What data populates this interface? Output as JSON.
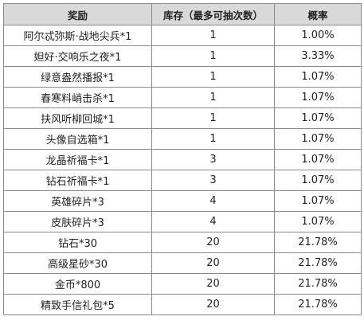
{
  "table": {
    "headers": [
      "奖励",
      "库存（最多可抽次数）",
      "概率"
    ],
    "rows": [
      {
        "reward": "阿尔忒弥斯·战地尖兵*1",
        "stock": "1",
        "prob": "1.00%"
      },
      {
        "reward": "妲好·交响乐之夜*1",
        "stock": "1",
        "prob": "3.33%"
      },
      {
        "reward": "绿意盎然播报*1",
        "stock": "1",
        "prob": "1.07%"
      },
      {
        "reward": "春寒料峭击杀*1",
        "stock": "1",
        "prob": "1.07%"
      },
      {
        "reward": "扶风听柳回城*1",
        "stock": "1",
        "prob": "1.07%"
      },
      {
        "reward": "头像自选箱*1",
        "stock": "1",
        "prob": "1.07%"
      },
      {
        "reward": "龙晶祈福卡*1",
        "stock": "3",
        "prob": "1.07%"
      },
      {
        "reward": "钻石祈福卡*1",
        "stock": "3",
        "prob": "1.07%"
      },
      {
        "reward": "英雄碎片*3",
        "stock": "4",
        "prob": "1.07%"
      },
      {
        "reward": "皮肤碎片*3",
        "stock": "4",
        "prob": "1.07%"
      },
      {
        "reward": "钻石*30",
        "stock": "20",
        "prob": "21.78%"
      },
      {
        "reward": "高级星砂*30",
        "stock": "20",
        "prob": "21.78%"
      },
      {
        "reward": "金币*800",
        "stock": "20",
        "prob": "21.78%"
      },
      {
        "reward": "精致手信礼包*5",
        "stock": "20",
        "prob": "21.78%"
      }
    ]
  }
}
